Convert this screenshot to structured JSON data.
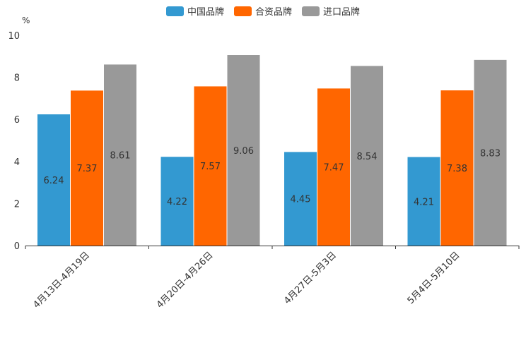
{
  "chart_data": {
    "type": "bar",
    "title": "",
    "unit_label": "%",
    "xlabel": "",
    "ylabel": "%",
    "ylim": [
      0,
      10
    ],
    "yticks": [
      0,
      2,
      4,
      6,
      8,
      10
    ],
    "categories": [
      "4月13日-4月19日",
      "4月20日-4月26日",
      "4月27日-5月3日",
      "5月4日-5月10日"
    ],
    "series": [
      {
        "name": "中国品牌",
        "color": "#3399d1",
        "values": [
          6.24,
          4.22,
          4.45,
          4.21
        ]
      },
      {
        "name": "合资品牌",
        "color": "#ff6600",
        "values": [
          7.37,
          7.57,
          7.47,
          7.38
        ]
      },
      {
        "name": "进口品牌",
        "color": "#999999",
        "values": [
          8.61,
          9.06,
          8.54,
          8.83
        ]
      }
    ],
    "legend_position": "top-center",
    "data_labels": true
  }
}
